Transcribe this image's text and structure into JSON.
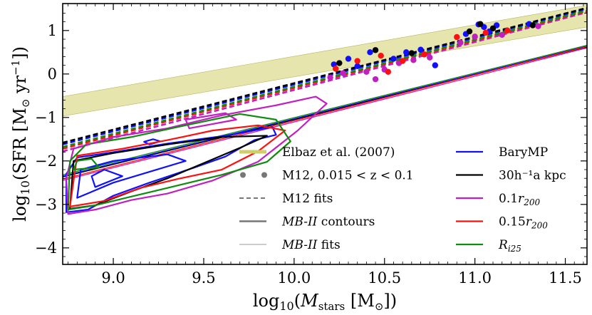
{
  "chart_data": {
    "type": "scatter",
    "xlabel": "log10(Mstars [M☉])",
    "ylabel": "log10(SFR [M☉ yr⁻¹])",
    "xlim": [
      8.72,
      11.62
    ],
    "ylim": [
      -4.38,
      1.62
    ],
    "xticks": [
      9.0,
      9.5,
      10.0,
      10.5,
      11.0,
      11.5
    ],
    "xtick_labels": [
      "9.0",
      "9.5",
      "10.0",
      "10.5",
      "11.0",
      "11.5"
    ],
    "yticks": [
      -4,
      -3,
      -2,
      -1,
      0,
      1
    ],
    "ytick_labels": [
      "−4",
      "−3",
      "−2",
      "−1",
      "0",
      "1"
    ],
    "band": {
      "name": "Elbaz et al. (2007)",
      "color": "#dada8a",
      "lower": [
        [
          8.72,
          -0.97
        ],
        [
          11.62,
          1.08
        ]
      ],
      "upper": [
        [
          8.72,
          -0.52
        ],
        [
          11.62,
          1.58
        ]
      ]
    },
    "series": [
      {
        "name": "BaryMP",
        "color": "#1010ff",
        "dashed_fit": [
          [
            8.72,
            -1.62
          ],
          [
            11.62,
            1.5
          ]
        ],
        "solid_fit": [
          [
            8.72,
            -2.35
          ],
          [
            11.62,
            0.64
          ]
        ],
        "points": [
          [
            10.22,
            0.22
          ],
          [
            10.3,
            0.35
          ],
          [
            10.42,
            0.5
          ],
          [
            10.55,
            0.35
          ],
          [
            10.62,
            0.5
          ],
          [
            10.7,
            0.56
          ],
          [
            10.95,
            0.92
          ],
          [
            11.02,
            1.14
          ],
          [
            11.05,
            1.08
          ],
          [
            11.08,
            0.98
          ],
          [
            11.12,
            1.12
          ],
          [
            11.3,
            1.15
          ],
          [
            10.78,
            0.2
          ],
          [
            10.35,
            0.18
          ]
        ],
        "contours": [
          [
            [
              8.74,
              -3.18
            ],
            [
              8.86,
              -3.12
            ],
            [
              9.0,
              -2.8
            ],
            [
              9.2,
              -2.5
            ],
            [
              9.45,
              -2.15
            ],
            [
              9.62,
              -1.9
            ],
            [
              9.78,
              -1.52
            ],
            [
              9.9,
              -1.4
            ],
            [
              9.88,
              -1.22
            ],
            [
              9.62,
              -1.42
            ],
            [
              9.3,
              -1.6
            ],
            [
              9.0,
              -1.8
            ],
            [
              8.8,
              -1.92
            ],
            [
              8.74,
              -2.3
            ]
          ],
          [
            [
              8.8,
              -2.85
            ],
            [
              9.0,
              -2.5
            ],
            [
              9.2,
              -2.25
            ],
            [
              9.4,
              -2.0
            ],
            [
              9.3,
              -1.85
            ],
            [
              9.0,
              -2.0
            ],
            [
              8.82,
              -2.2
            ]
          ],
          [
            [
              8.9,
              -2.6
            ],
            [
              9.05,
              -2.35
            ],
            [
              8.95,
              -2.2
            ],
            [
              8.88,
              -2.35
            ]
          ],
          [
            [
              9.2,
              -1.62
            ],
            [
              9.26,
              -1.55
            ],
            [
              9.22,
              -1.5
            ],
            [
              9.17,
              -1.56
            ]
          ]
        ]
      },
      {
        "name": "30h⁻¹a kpc",
        "color": "#000000",
        "dashed_fit": [
          [
            8.72,
            -1.58
          ],
          [
            11.62,
            1.52
          ]
        ],
        "solid_fit": [
          [
            8.72,
            -2.37
          ],
          [
            11.62,
            0.62
          ]
        ],
        "points": [
          [
            10.25,
            0.25
          ],
          [
            10.45,
            0.55
          ],
          [
            10.65,
            0.48
          ],
          [
            10.97,
            0.98
          ],
          [
            11.03,
            1.15
          ],
          [
            11.1,
            1.05
          ],
          [
            11.32,
            1.12
          ]
        ],
        "contours": [
          [
            [
              8.76,
              -3.1
            ],
            [
              8.9,
              -3.02
            ],
            [
              9.1,
              -2.7
            ],
            [
              9.3,
              -2.4
            ],
            [
              9.5,
              -2.05
            ],
            [
              9.7,
              -1.7
            ],
            [
              9.85,
              -1.42
            ],
            [
              9.6,
              -1.45
            ],
            [
              9.3,
              -1.62
            ],
            [
              9.0,
              -1.82
            ],
            [
              8.78,
              -2.0
            ]
          ]
        ]
      },
      {
        "name": "0.1r200",
        "color": "#c020c0",
        "dashed_fit": [
          [
            8.72,
            -1.78
          ],
          [
            11.62,
            1.42
          ]
        ],
        "solid_fit": [
          [
            8.72,
            -2.45
          ],
          [
            11.62,
            0.6
          ]
        ],
        "points": [
          [
            10.2,
            -0.08
          ],
          [
            10.27,
            0.02
          ],
          [
            10.4,
            0.05
          ],
          [
            10.5,
            0.1
          ],
          [
            10.58,
            0.25
          ],
          [
            10.66,
            0.32
          ],
          [
            10.75,
            0.38
          ],
          [
            10.92,
            0.72
          ],
          [
            11.0,
            0.86
          ],
          [
            11.15,
            0.9
          ],
          [
            11.35,
            1.1
          ],
          [
            10.45,
            -0.12
          ]
        ],
        "contours": [
          [
            [
              8.75,
              -3.22
            ],
            [
              8.9,
              -3.12
            ],
            [
              9.1,
              -2.9
            ],
            [
              9.3,
              -2.75
            ],
            [
              9.55,
              -2.45
            ],
            [
              9.8,
              -2.02
            ],
            [
              10.02,
              -1.3
            ],
            [
              10.18,
              -0.68
            ],
            [
              10.12,
              -0.52
            ],
            [
              9.9,
              -0.72
            ],
            [
              9.6,
              -0.95
            ],
            [
              9.3,
              -1.25
            ],
            [
              9.0,
              -1.45
            ],
            [
              8.78,
              -1.72
            ],
            [
              8.74,
              -2.4
            ]
          ],
          [
            [
              9.42,
              -1.25
            ],
            [
              9.68,
              -1.05
            ],
            [
              9.62,
              -0.9
            ],
            [
              9.4,
              -1.05
            ]
          ]
        ]
      },
      {
        "name": "0.15r200",
        "color": "#ff1010",
        "dashed_fit": [
          [
            8.72,
            -1.72
          ],
          [
            11.62,
            1.45
          ]
        ],
        "solid_fit": [
          [
            8.72,
            -2.42
          ],
          [
            11.62,
            0.63
          ]
        ],
        "points": [
          [
            10.23,
            0.12
          ],
          [
            10.35,
            0.3
          ],
          [
            10.48,
            0.42
          ],
          [
            10.6,
            0.3
          ],
          [
            10.72,
            0.45
          ],
          [
            10.9,
            0.85
          ],
          [
            11.06,
            0.95
          ],
          [
            11.18,
            1.0
          ],
          [
            10.52,
            0.05
          ]
        ],
        "contours": [
          [
            [
              8.76,
              -3.05
            ],
            [
              8.95,
              -2.92
            ],
            [
              9.15,
              -2.62
            ],
            [
              9.35,
              -2.42
            ],
            [
              9.6,
              -2.2
            ],
            [
              9.8,
              -1.78
            ],
            [
              9.95,
              -1.3
            ],
            [
              9.8,
              -1.18
            ],
            [
              9.55,
              -1.3
            ],
            [
              9.3,
              -1.52
            ],
            [
              9.05,
              -1.72
            ],
            [
              8.8,
              -1.88
            ]
          ]
        ]
      },
      {
        "name": "Ri25",
        "color": "#108a10",
        "dashed_fit": [
          [
            8.72,
            -1.68
          ],
          [
            11.62,
            1.46
          ]
        ],
        "solid_fit": [
          [
            8.72,
            -2.32
          ],
          [
            11.62,
            0.66
          ]
        ],
        "points": [],
        "contours": [
          [
            [
              8.75,
              -3.12
            ],
            [
              8.9,
              -3.02
            ],
            [
              9.1,
              -2.82
            ],
            [
              9.3,
              -2.62
            ],
            [
              9.6,
              -2.32
            ],
            [
              9.85,
              -2.02
            ],
            [
              9.98,
              -1.55
            ],
            [
              9.9,
              -1.05
            ],
            [
              9.7,
              -0.92
            ],
            [
              9.4,
              -1.18
            ],
            [
              9.1,
              -1.45
            ],
            [
              8.85,
              -1.62
            ],
            [
              8.76,
              -2.0
            ]
          ],
          [
            [
              8.78,
              -2.2
            ],
            [
              8.92,
              -2.15
            ],
            [
              8.88,
              -1.95
            ],
            [
              8.8,
              -2.0
            ]
          ]
        ]
      }
    ],
    "legend": [
      {
        "label": "Elbaz et al. (2007)",
        "style": "band",
        "color": "#cfcf6a"
      },
      {
        "label": "M12, 0.015 < z < 0.1",
        "style": "dots",
        "color": "#777777"
      },
      {
        "label": "M12 fits",
        "style": "dashed",
        "color": "#777777"
      },
      {
        "label": "MB-II contours",
        "style": "thick",
        "color": "#777777"
      },
      {
        "label": "MB-II fits",
        "style": "thin",
        "color": "#999999"
      },
      {
        "label": "BaryMP",
        "style": "line",
        "color": "#1010ff"
      },
      {
        "label": "30h⁻¹a kpc",
        "style": "line",
        "color": "#000000"
      },
      {
        "label": "0.1r200",
        "style": "line",
        "color": "#c020c0"
      },
      {
        "label": "0.15r200",
        "style": "line",
        "color": "#ff1010"
      },
      {
        "label": "Ri25",
        "style": "line",
        "color": "#108a10"
      }
    ]
  }
}
